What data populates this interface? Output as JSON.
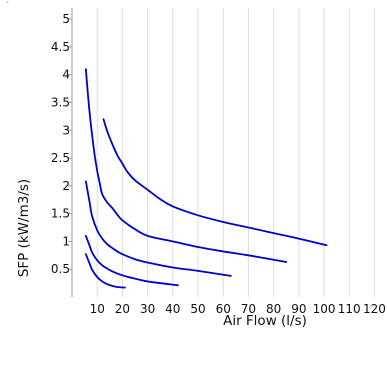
{
  "corner_mark": "`",
  "colors": {
    "curve": "#0000cc",
    "grid": "#dddddd",
    "axis": "#999999",
    "text": "#111111"
  },
  "chart_data": {
    "type": "line",
    "title": "",
    "xlabel": "Air Flow (l/s)",
    "ylabel": "SFP (kW/m3/s)",
    "xlim": [
      0,
      123
    ],
    "ylim": [
      0,
      5.2
    ],
    "x_ticks": [
      10,
      20,
      30,
      40,
      50,
      60,
      70,
      80,
      90,
      100,
      110,
      120
    ],
    "y_ticks": [
      0.5,
      1,
      1.5,
      2,
      2.5,
      3,
      3.5,
      4,
      4.5,
      5
    ],
    "x_tick_labels": [
      "10",
      "20",
      "30",
      "40",
      "50",
      "60",
      "70",
      "80",
      "90",
      "100",
      "110",
      "120"
    ],
    "y_tick_labels": [
      "0.5",
      "1",
      "1.5",
      "2",
      "2.5",
      "3",
      "3.5",
      "4",
      "4.5",
      "5"
    ],
    "grid": true,
    "legend": "none",
    "series": [
      {
        "x": [
          12.5,
          14,
          16,
          18,
          20,
          22,
          25,
          30,
          35,
          40,
          50,
          60,
          70,
          80,
          90,
          101
        ],
        "y": [
          3.2,
          2.98,
          2.75,
          2.55,
          2.4,
          2.25,
          2.1,
          1.93,
          1.76,
          1.63,
          1.47,
          1.35,
          1.25,
          1.15,
          1.05,
          0.93
        ]
      },
      {
        "x": [
          5.5,
          6.5,
          7.5,
          9,
          10,
          11,
          12,
          14,
          16,
          18,
          20,
          25,
          30,
          40,
          50,
          60,
          70,
          85
        ],
        "y": [
          4.1,
          3.55,
          3.1,
          2.55,
          2.27,
          2.05,
          1.85,
          1.7,
          1.6,
          1.48,
          1.38,
          1.22,
          1.1,
          1.0,
          0.9,
          0.82,
          0.75,
          0.63
        ]
      },
      {
        "x": [
          5.5,
          7,
          8,
          10,
          12,
          14,
          16,
          18,
          20,
          25,
          30,
          40,
          50,
          63
        ],
        "y": [
          2.08,
          1.7,
          1.45,
          1.2,
          1.05,
          0.95,
          0.88,
          0.82,
          0.77,
          0.68,
          0.62,
          0.53,
          0.47,
          0.38
        ]
      },
      {
        "x": [
          5.5,
          7,
          8,
          10,
          12,
          14,
          16,
          20,
          25,
          30,
          42
        ],
        "y": [
          1.1,
          0.92,
          0.8,
          0.66,
          0.57,
          0.51,
          0.46,
          0.39,
          0.33,
          0.28,
          0.21
        ]
      },
      {
        "x": [
          5.5,
          7,
          8,
          10,
          12,
          14,
          16,
          18,
          21
        ],
        "y": [
          0.77,
          0.6,
          0.49,
          0.36,
          0.28,
          0.23,
          0.2,
          0.18,
          0.17
        ]
      }
    ]
  }
}
